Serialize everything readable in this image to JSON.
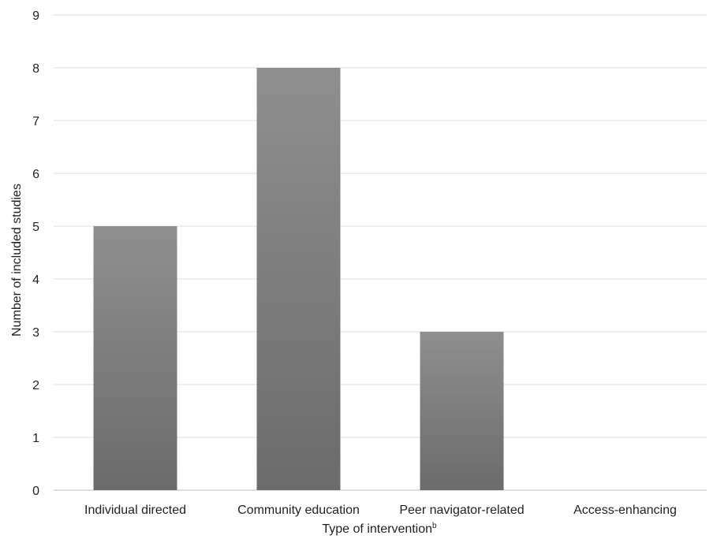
{
  "chart_data": {
    "type": "bar",
    "categories": [
      "Individual directed",
      "Community education",
      "Peer navigator-related",
      "Access-enhancing"
    ],
    "values": [
      5,
      8,
      3,
      0
    ],
    "title": "",
    "xlabel": "Type of intervention",
    "xlabel_superscript": "b",
    "ylabel": "Number of included studies",
    "ylim": [
      0,
      9
    ],
    "yticks": [
      0,
      1,
      2,
      3,
      4,
      5,
      6,
      7,
      8,
      9
    ],
    "grid": "horizontal",
    "legend": "none",
    "colors": {
      "bar_top": "#8f8f8f",
      "bar_bottom": "#6b6b6b",
      "grid": "#dcdcdc"
    }
  }
}
